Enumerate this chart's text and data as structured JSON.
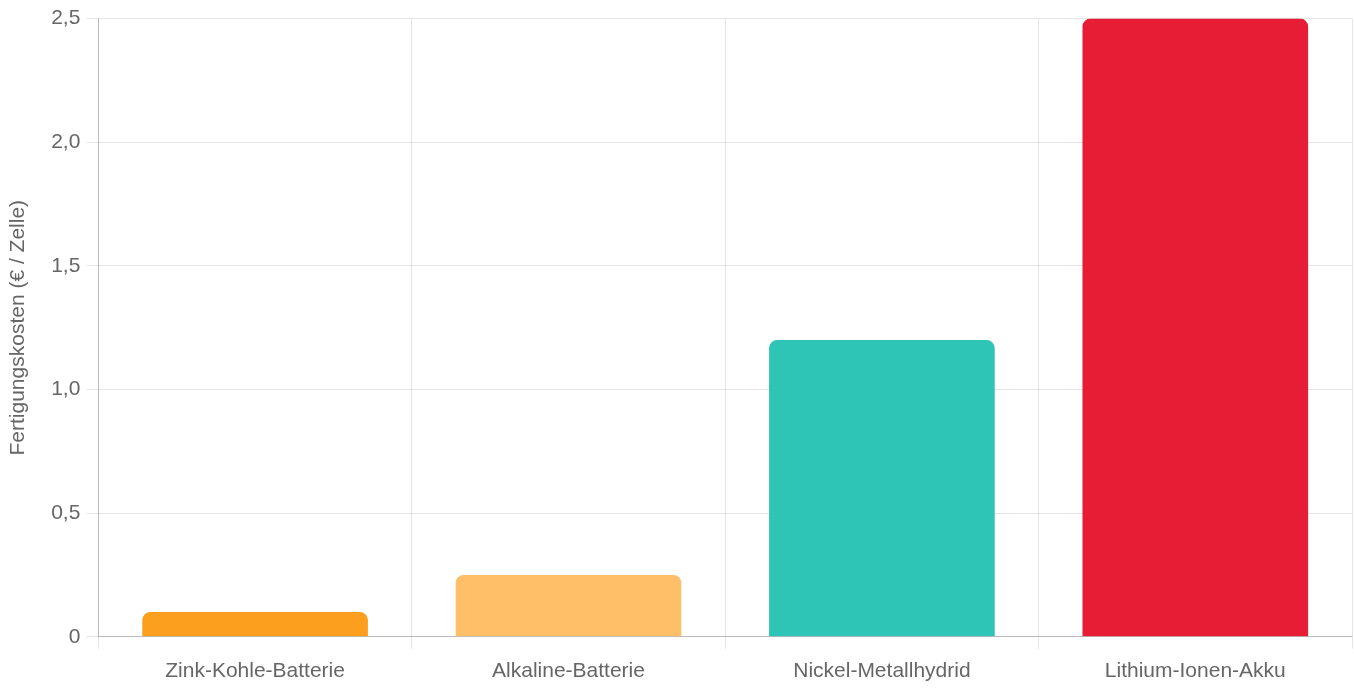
{
  "chart_data": {
    "type": "bar",
    "ylabel": "Fertigungskosten (€ / Zelle)",
    "categories": [
      "Zink-Kohle-Batterie",
      "Alkaline-Batterie",
      "Nickel-Metallhydrid",
      "Lithium-Ionen-Akku"
    ],
    "values": [
      0.1,
      0.25,
      1.2,
      2.5
    ],
    "colors": [
      "#fc9e1e",
      "#ffbf69",
      "#2ec4b6",
      "#e71d36"
    ],
    "ylim": [
      0,
      2.5
    ],
    "yticks": [
      0,
      {
        "value": 0.5,
        "label": "0,5"
      },
      {
        "value": 1,
        "label": "1,0"
      },
      {
        "value": 1.5,
        "label": "1,5"
      },
      {
        "value": 2,
        "label": "2,0"
      },
      {
        "value": 2.5,
        "label": "2,5"
      }
    ],
    "grid": true
  }
}
